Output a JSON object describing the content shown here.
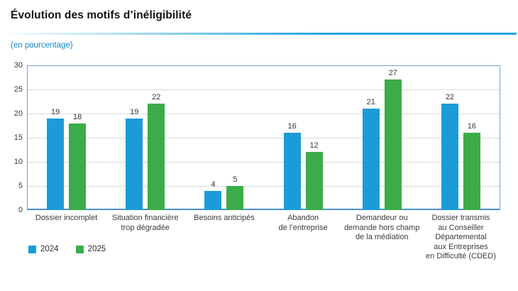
{
  "header": {
    "title": "Évolution des motifs d’inéligibilité",
    "subtitle": "(en pourcentage)"
  },
  "colors": {
    "series_2024": "#1b9cd8",
    "series_2025": "#3bac49",
    "plot_border": "#6aa3d8",
    "gridline": "#d9d9d9",
    "subtitle_blue": "#1287c9",
    "title_rule_blue": "#20a3de"
  },
  "chart_data": {
    "type": "bar",
    "title": "Évolution des motifs d’inéligibilité",
    "subtitle": "(en pourcentage)",
    "categories": [
      "Dossier incomplet",
      "Situation financière trop dégradée",
      "Besoins anticipés",
      "Abandon de l’entreprise",
      "Demandeur ou demande hors champ de la médiation",
      "Dossier transmis au Conseiller Départemental aux Entreprises en Difficulté (CDED)"
    ],
    "category_lines": [
      [
        "Dossier incomplet"
      ],
      [
        "Situation financière",
        "trop dégradée"
      ],
      [
        "Besoins anticipés"
      ],
      [
        "Abandon",
        "de l’entreprise"
      ],
      [
        "Demandeur ou",
        "demande hors champ",
        "de la médiation"
      ],
      [
        "Dossier transmis",
        "au Conseiller",
        "Départemental",
        "aux Entreprises",
        "en Difficulté (CDED)"
      ]
    ],
    "series": [
      {
        "name": "2024",
        "color": "#1b9cd8",
        "values": [
          19,
          19,
          4,
          16,
          21,
          22
        ]
      },
      {
        "name": "2025",
        "color": "#3bac49",
        "values": [
          18,
          22,
          5,
          12,
          27,
          16
        ]
      }
    ],
    "ylim": [
      0,
      30
    ],
    "yticks": [
      0,
      5,
      10,
      15,
      20,
      25,
      30
    ],
    "grid": true,
    "legend_position": "bottom-left"
  }
}
